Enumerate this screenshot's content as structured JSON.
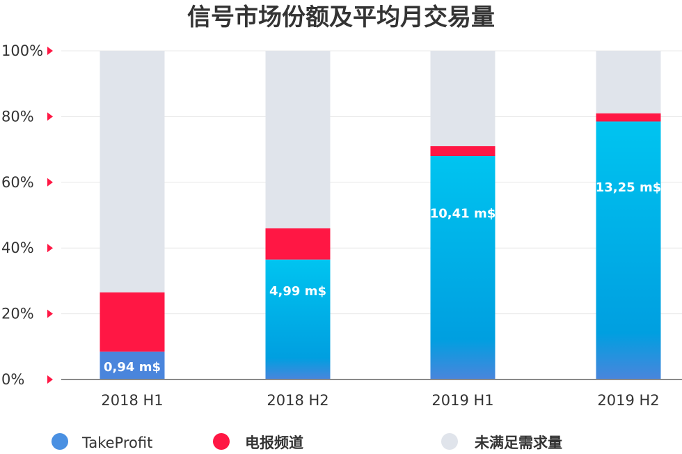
{
  "chart_data": {
    "type": "bar",
    "stacked": true,
    "title": "信号市场份额及平均月交易量",
    "categories": [
      "2018 H1",
      "2018 H2",
      "2019 H1",
      "2019 H2"
    ],
    "ylim": [
      0,
      100
    ],
    "yticks": [
      "0%",
      "20%",
      "40%",
      "60%",
      "80%",
      "100%"
    ],
    "ytick_values": [
      0,
      20,
      40,
      60,
      80,
      100
    ],
    "grid": true,
    "legend_position": "bottom",
    "series": [
      {
        "name": "TakeProfit",
        "values": [
          8.5,
          36.5,
          68,
          78.5
        ],
        "labels": [
          "0,94 m$",
          "4,99 m$",
          "10,41 m$",
          "13,25 m$"
        ]
      },
      {
        "name": "电报频道",
        "values": [
          18,
          9.5,
          3,
          2.5
        ]
      },
      {
        "name": "未满足需求量",
        "values": [
          73.5,
          54,
          29,
          19
        ]
      }
    ],
    "colors": {
      "takeprofit_legend": "#4a90e2",
      "takeprofit_top": "#00c4f0",
      "takeprofit_mid": "#009fe0",
      "takeprofit_bottom": "#4a85dc",
      "telegram": "#ff1744",
      "unmet": "#e0e4eb",
      "grid": "#e8e8e8",
      "axis": "#8a8a8a",
      "tick_marker": "#ff1744",
      "text": "#333333",
      "bar_label": "#ffffff"
    }
  }
}
